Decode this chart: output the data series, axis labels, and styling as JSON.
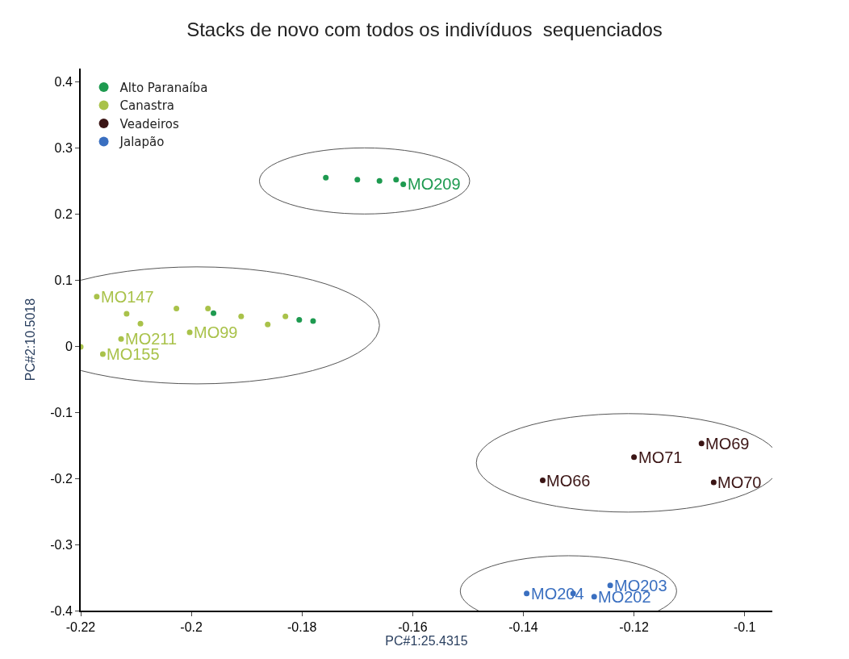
{
  "chart_data": {
    "type": "scatter",
    "title": "Stacks de novo com todos os indivíduos  sequenciados",
    "xlabel": "PC#1:25.4315",
    "ylabel": "PC#2:10.5018",
    "xlim": [
      -0.22,
      -0.095
    ],
    "ylim": [
      -0.4,
      0.42
    ],
    "xticks": [
      -0.22,
      -0.2,
      -0.18,
      -0.16,
      -0.14,
      -0.12,
      -0.1
    ],
    "yticks": [
      -0.4,
      -0.3,
      -0.2,
      -0.1,
      0,
      0.1,
      0.2,
      0.3,
      0.4
    ],
    "grid": false,
    "legend": "top left",
    "marker": "circle",
    "series": [
      {
        "name": "Alto Paranaíba",
        "color": "#1e9a50",
        "x": [
          -0.1757,
          -0.17,
          -0.166,
          -0.163,
          -0.1617,
          -0.1805,
          -0.178,
          -0.196
        ],
        "values": [
          0.255,
          0.252,
          0.25,
          0.252,
          0.245,
          0.04,
          0.038,
          0.05
        ]
      },
      {
        "name": "Canastra",
        "color": "#a9c24a",
        "x": [
          -0.2171,
          -0.2117,
          -0.2092,
          -0.2127,
          -0.22,
          -0.216,
          -0.2003,
          -0.2027,
          -0.197,
          -0.191,
          -0.1862,
          -0.183
        ],
        "values": [
          0.075,
          0.049,
          0.034,
          0.011,
          -0.001,
          -0.012,
          0.021,
          0.057,
          0.057,
          0.045,
          0.033,
          0.045
        ]
      },
      {
        "name": "Veadeiros",
        "color": "#3a1414",
        "x": [
          -0.1365,
          -0.12,
          -0.1078,
          -0.1056
        ],
        "values": [
          -0.203,
          -0.168,
          -0.147,
          -0.206
        ]
      },
      {
        "name": "Jalapão",
        "color": "#3a6fc0",
        "x": [
          -0.1394,
          -0.1243,
          -0.1272,
          -0.131
        ],
        "values": [
          -0.374,
          -0.362,
          -0.379,
          -0.374
        ]
      }
    ],
    "annotations": [
      {
        "text": "MO209",
        "x": -0.1617,
        "y": 0.245
      },
      {
        "text": "MO147",
        "x": -0.2171,
        "y": 0.075
      },
      {
        "text": "MO211",
        "x": -0.2127,
        "y": 0.011
      },
      {
        "text": "MO155",
        "x": -0.216,
        "y": -0.012
      },
      {
        "text": "MO99",
        "x": -0.2003,
        "y": 0.021
      },
      {
        "text": "MO66",
        "x": -0.1365,
        "y": -0.203
      },
      {
        "text": "MO71",
        "x": -0.12,
        "y": -0.168
      },
      {
        "text": "MO69",
        "x": -0.1078,
        "y": -0.147
      },
      {
        "text": "MO70",
        "x": -0.1056,
        "y": -0.206
      },
      {
        "text": "MO204",
        "x": -0.1394,
        "y": -0.374
      },
      {
        "text": "MO203",
        "x": -0.1243,
        "y": -0.362
      },
      {
        "text": "MO202",
        "x": -0.1272,
        "y": -0.379
      }
    ]
  }
}
